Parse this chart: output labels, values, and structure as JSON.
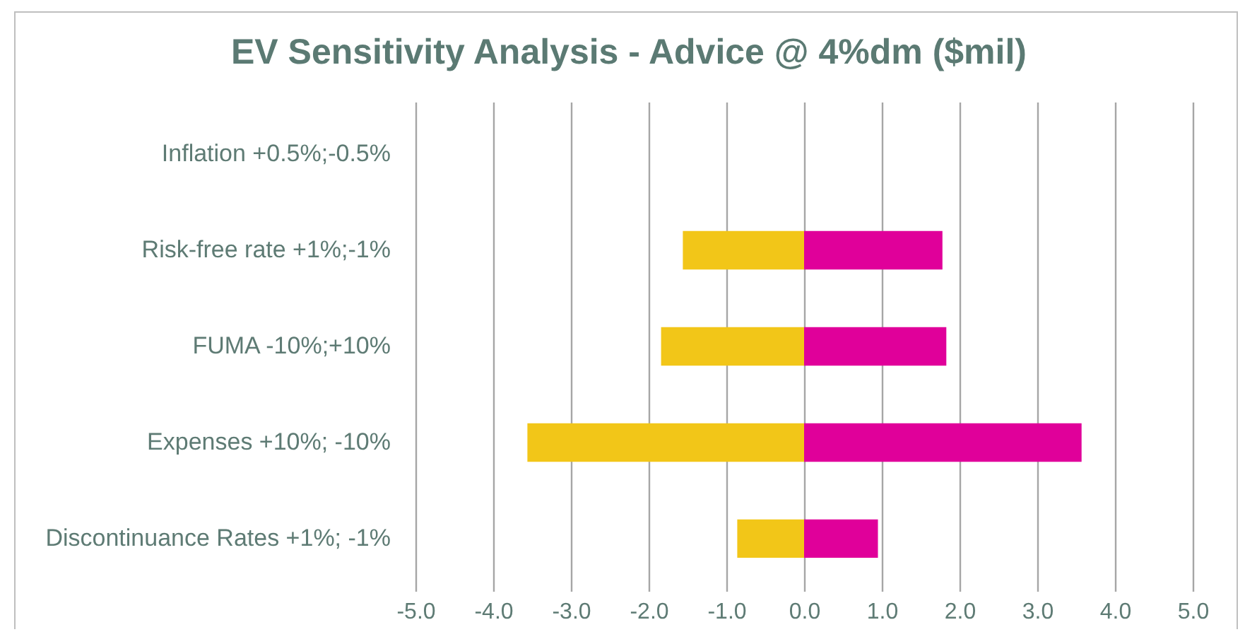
{
  "chart_data": {
    "type": "bar",
    "orientation": "horizontal",
    "stacked": true,
    "title": "EV Sensitivity Analysis - Advice @ 4%dm ($mil)",
    "categories": [
      "Inflation +0.5%;-0.5%",
      "Risk-free rate +1%;-1%",
      "FUMA -10%;+10%",
      "Expenses +10%; -10%",
      "Discontinuance Rates +1%; -1%"
    ],
    "series": [
      {
        "color": "#f2c618",
        "values": [
          0,
          -1.56,
          -1.84,
          -3.56,
          -0.86
        ]
      },
      {
        "color": "#e0009a",
        "values": [
          0,
          1.78,
          1.83,
          3.57,
          0.95
        ]
      }
    ],
    "xlim": [
      -5,
      5
    ],
    "xticks": [
      {
        "value": -5,
        "label": "-5.0"
      },
      {
        "value": -4,
        "label": "-4.0"
      },
      {
        "value": -3,
        "label": "-3.0"
      },
      {
        "value": -2,
        "label": "-2.0"
      },
      {
        "value": -1,
        "label": "-1.0"
      },
      {
        "value": 0,
        "label": "0.0"
      },
      {
        "value": 1,
        "label": "1.0"
      },
      {
        "value": 2,
        "label": "2.0"
      },
      {
        "value": 3,
        "label": "3.0"
      },
      {
        "value": 4,
        "label": "4.0"
      },
      {
        "value": 5,
        "label": "5.0"
      }
    ],
    "grid": "x",
    "legend": false
  }
}
